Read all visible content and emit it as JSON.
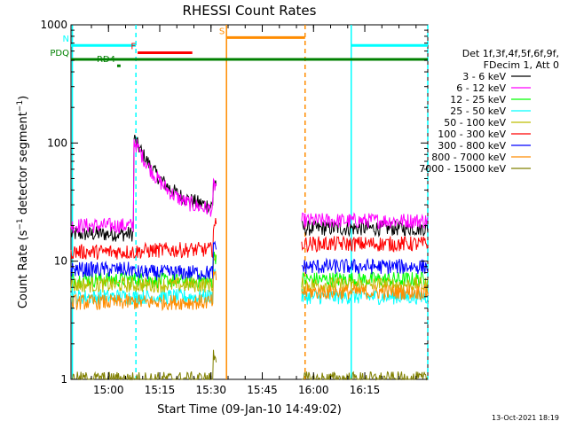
{
  "chart_data": {
    "type": "line",
    "title": "RHESSI Count Rates",
    "xlabel": "Start Time (09-Jan-10 14:49:02)",
    "ylabel": "Count Rate (s⁻¹ detector segment⁻¹)",
    "ylabel_main": "Count Rate (s",
    "ylabel_mid": " detector segment",
    "ylabel_end": ")",
    "ylabel_sup": "−1",
    "yscale": "log",
    "ylim": [
      1,
      1000
    ],
    "xlim": [
      0,
      104.4
    ],
    "x_unit": "minutes after 14:49:02",
    "y_ticks": [
      1,
      10,
      100,
      1000
    ],
    "y_tick_labels": [
      "1",
      "10",
      "100",
      "1000"
    ],
    "x_ticks": [
      10.97,
      25.97,
      40.97,
      55.97,
      70.97,
      85.97
    ],
    "x_tick_labels": [
      "15:00",
      "15:15",
      "15:30",
      "15:45",
      "16:00",
      "16:15"
    ],
    "legend": {
      "header": [
        "Det 1f,3f,4f,5f,6f,9f,",
        "FDecim 1, Att 0"
      ],
      "placement": "right"
    },
    "series": [
      {
        "name": "3 - 6 keV",
        "color": "#000000",
        "base_before": 17,
        "peak": 112,
        "preend": 30,
        "end_level": 28,
        "base_after": 19
      },
      {
        "name": "6 - 12 keV",
        "color": "#ff00ff",
        "base_before": 20,
        "peak": 106,
        "preend": 27,
        "end_level": 26,
        "base_after": 22
      },
      {
        "name": "12 - 25 keV",
        "color": "#00ff00",
        "base_before": 7,
        "peak": 7,
        "preend": 7,
        "end_level": 6.8,
        "base_after": 7
      },
      {
        "name": "25 - 50 keV",
        "color": "#00ffff",
        "base_before": 5,
        "peak": 5,
        "preend": 5,
        "end_level": 5,
        "base_after": 5
      },
      {
        "name": "50 - 100 keV",
        "color": "#bdbd00",
        "base_before": 6.3,
        "peak": 6.3,
        "preend": 6.3,
        "end_level": 6.3,
        "base_after": 6.3
      },
      {
        "name": "100 - 300 keV",
        "color": "#ff0000",
        "base_before": 12,
        "peak": 12,
        "preend": 12.5,
        "end_level": 12.5,
        "base_after": 14
      },
      {
        "name": "300 - 800 keV",
        "color": "#0000ff",
        "base_before": 8.5,
        "peak": 8,
        "preend": 8,
        "end_level": 8,
        "base_after": 9
      },
      {
        "name": "800 - 7000 keV",
        "color": "#ff8c00",
        "base_before": 4.5,
        "peak": 4.5,
        "preend": 4.5,
        "end_level": 4.5,
        "base_after": 5.5
      },
      {
        "name": "7000 - 15000 keV",
        "color": "#808000",
        "base_before": 1,
        "peak": 1,
        "preend": 1,
        "end_level": 1,
        "base_after": 1
      }
    ],
    "data_intervals": [
      [
        0,
        42.5
      ],
      [
        67.5,
        104.4
      ]
    ],
    "attenuator_step_x": 18.3,
    "flags": [
      {
        "label": "N",
        "color": "#00ffff",
        "y": 670,
        "segments": [
          [
            0,
            19.0
          ],
          [
            82.0,
            104.4
          ]
        ]
      },
      {
        "label": "F",
        "color": "#ff0000",
        "y": 580,
        "segments": [
          [
            19.5,
            35.5
          ]
        ]
      },
      {
        "label": "S",
        "color": "#ff8c00",
        "y": 780,
        "segments": [
          [
            45.5,
            68.5
          ]
        ]
      },
      {
        "label": "PDQ",
        "color": "#008000",
        "y": 510,
        "segments": [
          [
            0,
            104.4
          ]
        ]
      },
      {
        "label": "RD4",
        "color": "#008000",
        "y": 450,
        "segments": [
          [
            13.5,
            14.5
          ]
        ]
      }
    ],
    "vertical_markers": [
      {
        "x": 19.0,
        "color": "#00ffff",
        "style": "dashed"
      },
      {
        "x": 45.5,
        "color": "#ff8c00",
        "style": "solid"
      },
      {
        "x": 68.5,
        "color": "#ff8c00",
        "style": "dashed"
      },
      {
        "x": 82.0,
        "color": "#00ffff",
        "style": "solid"
      },
      {
        "x": 104.4,
        "color": "#00ffff",
        "style": "dashed"
      },
      {
        "x": 0.4,
        "color": "#00ffff",
        "style": "solid"
      }
    ]
  },
  "footer": {
    "timestamp": "13-Oct-2021 18:19"
  }
}
